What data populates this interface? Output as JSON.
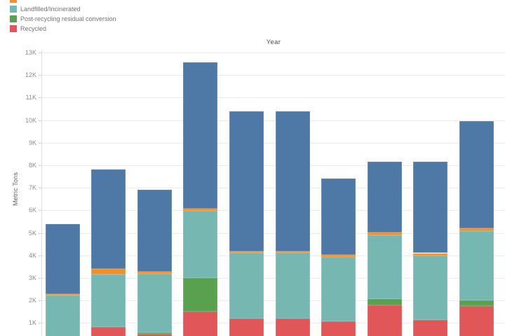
{
  "legend": {
    "items": [
      {
        "label": "",
        "color": "#f28e2b",
        "cut_off": true
      },
      {
        "label": "Landfilled/Incinerated",
        "color": "#76b7b2",
        "cut_off": false
      },
      {
        "label": "Post-recycling residual conversion",
        "color": "#59a14f",
        "cut_off": false
      },
      {
        "label": "Recycled",
        "color": "#e15759",
        "cut_off": false
      }
    ]
  },
  "chart_data": {
    "type": "bar",
    "stacked": true,
    "title": "Year",
    "ylabel": "Metric Tons",
    "grid": "horizontal",
    "n_bars": 10,
    "x_tick_labels_visible": false,
    "bottom_cut_off_at_value": 460,
    "y_axis": {
      "min": 0,
      "max": 13000,
      "tick_step": 1000,
      "ticks": [
        {
          "value": 1000,
          "label": "1K"
        },
        {
          "value": 2000,
          "label": "2K"
        },
        {
          "value": 3000,
          "label": "3K"
        },
        {
          "value": 4000,
          "label": "4K"
        },
        {
          "value": 5000,
          "label": "5K"
        },
        {
          "value": 6000,
          "label": "6K"
        },
        {
          "value": 7000,
          "label": "7K"
        },
        {
          "value": 8000,
          "label": "8K"
        },
        {
          "value": 9000,
          "label": "9K"
        },
        {
          "value": 10000,
          "label": "10K"
        },
        {
          "value": 11000,
          "label": "11K"
        },
        {
          "value": 12000,
          "label": "12K"
        },
        {
          "value": 13000,
          "label": "13K"
        }
      ]
    },
    "series": [
      {
        "id": "recycled",
        "legend_label": "Recycled",
        "color": "#e15759",
        "values": [
          0,
          820,
          520,
          1510,
          1200,
          1200,
          1080,
          1800,
          1150,
          1750
        ]
      },
      {
        "id": "post-recycling-residual-conversion",
        "legend_label": "Post-recycling residual conversion",
        "color": "#59a14f",
        "values": [
          0,
          0,
          60,
          1500,
          0,
          0,
          0,
          260,
          0,
          250
        ]
      },
      {
        "id": "landfilled-incinerated",
        "legend_label": "Landfilled/Incinerated",
        "color": "#76b7b2",
        "values": [
          2230,
          2330,
          2610,
          2970,
          2910,
          2910,
          2860,
          2830,
          2850,
          3080
        ]
      },
      {
        "id": "orange-category",
        "legend_label": null,
        "legend_cut_off": true,
        "color": "#f28e2b",
        "values": [
          60,
          270,
          80,
          100,
          70,
          70,
          80,
          130,
          100,
          120
        ]
      },
      {
        "id": "blue-category",
        "legend_label": null,
        "color": "#4e79a7",
        "values": [
          3110,
          4410,
          3630,
          6480,
          6200,
          6200,
          3390,
          3140,
          4060,
          4750
        ]
      }
    ],
    "bar_totals": [
      5400,
      7830,
      6900,
      12560,
      10380,
      10380,
      7410,
      8160,
      8160,
      9950
    ]
  }
}
